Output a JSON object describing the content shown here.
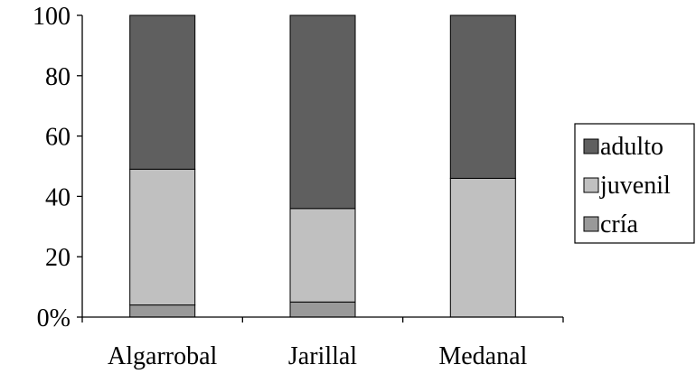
{
  "chart_data": {
    "type": "bar",
    "stacked": true,
    "categories": [
      "Algarrobal",
      "Jarillal",
      "Medanal"
    ],
    "series": [
      {
        "name": "cría",
        "values": [
          4,
          5,
          0
        ],
        "color": "#999999"
      },
      {
        "name": "juvenil",
        "values": [
          45,
          31,
          46
        ],
        "color": "#c0c0c0"
      },
      {
        "name": "adulto",
        "values": [
          51,
          64,
          54
        ],
        "color": "#5f5f5f"
      }
    ],
    "legend_order": [
      "adulto",
      "juvenil",
      "cría"
    ],
    "legend_position": "right",
    "y_ticks": [
      "0%",
      "20",
      "40",
      "60",
      "80",
      "100"
    ],
    "ylim": [
      0,
      100
    ],
    "grid": false,
    "title": "",
    "xlabel": "",
    "ylabel": ""
  }
}
